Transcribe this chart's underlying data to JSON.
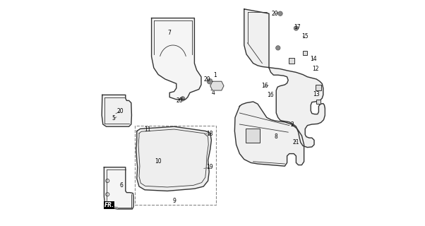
{
  "background_color": "#ffffff",
  "line_color": "#333333",
  "label_color": "#000000",
  "fig_width": 6.02,
  "fig_height": 3.2,
  "dpi": 100
}
